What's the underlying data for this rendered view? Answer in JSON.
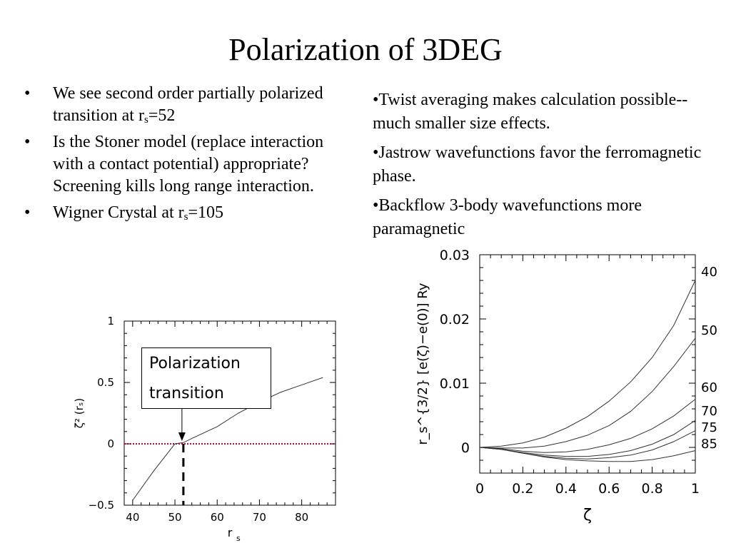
{
  "title": "Polarization of 3DEG",
  "left_bullets": [
    {
      "bullet": "•",
      "parts": [
        "We see second order partially polarized transition at r",
        "s",
        "=52"
      ]
    },
    {
      "bullet": "•",
      "parts": [
        "Is the Stoner model (replace interaction with a contact potential) appropriate? Screening kills long range interaction.",
        "",
        ""
      ]
    },
    {
      "bullet": "•",
      "parts": [
        "Wigner Crystal at r",
        "s",
        "=105"
      ]
    }
  ],
  "right_bullets": [
    "•Twist averaging makes calculation possible--much smaller size effects.",
    "•Jastrow wavefunctions favor the ferromagnetic phase.",
    "•Backflow 3-body wavefunctions more paramagnetic"
  ],
  "chart_data": [
    {
      "type": "line",
      "xlabel": "r",
      "xlabel_sub": "s",
      "ylabel": "ζ² (rₛ)",
      "xlim": [
        38,
        88
      ],
      "ylim": [
        -0.5,
        1
      ],
      "x_ticks": [
        "40",
        "50",
        "60",
        "70",
        "80"
      ],
      "y_ticks": [
        "1",
        "0.5",
        "0",
        "−0.5"
      ],
      "grid": false,
      "series": [
        {
          "x": [
            40,
            45,
            50,
            52,
            55,
            60,
            65,
            70,
            75,
            80,
            85
          ],
          "y": [
            -0.46,
            -0.22,
            0.0,
            0.01,
            0.06,
            0.14,
            0.25,
            0.34,
            0.42,
            0.48,
            0.54
          ]
        }
      ],
      "reference_line": {
        "y": 0,
        "color": "#cc0033",
        "style": "dotted"
      },
      "transition_marker": {
        "x": 52,
        "style": "dashed",
        "color": "#000000"
      },
      "annotation": {
        "line1": "Polarization",
        "line2": "transition"
      }
    },
    {
      "type": "line",
      "xlabel": "ζ",
      "ylabel": "r_s^{3/2} [e(ζ)−e(0)] Ry",
      "xlim": [
        0,
        1
      ],
      "ylim": [
        -0.004,
        0.03
      ],
      "x_ticks": [
        "0",
        "0.2",
        "0.4",
        "0.6",
        "0.8",
        "1"
      ],
      "y_ticks": [
        "0.03",
        "0.02",
        "0.01",
        "0"
      ],
      "grid": false,
      "series": [
        {
          "name": "40",
          "x": [
            0,
            0.1,
            0.2,
            0.3,
            0.4,
            0.5,
            0.6,
            0.7,
            0.8,
            0.9,
            1.0
          ],
          "y": [
            0,
            0.0002,
            0.0007,
            0.0016,
            0.003,
            0.0048,
            0.0072,
            0.0102,
            0.014,
            0.019,
            0.026
          ]
        },
        {
          "name": "50",
          "x": [
            0,
            0.1,
            0.2,
            0.3,
            0.4,
            0.5,
            0.6,
            0.7,
            0.8,
            0.9,
            1.0
          ],
          "y": [
            0,
            -0.0001,
            -0.0001,
            0.0002,
            0.0009,
            0.0019,
            0.0034,
            0.0056,
            0.0087,
            0.0126,
            0.017
          ]
        },
        {
          "name": "60",
          "x": [
            0,
            0.1,
            0.2,
            0.3,
            0.4,
            0.5,
            0.6,
            0.7,
            0.8,
            0.9,
            1.0
          ],
          "y": [
            0,
            -0.0002,
            -0.0006,
            -0.0008,
            -0.0007,
            -0.0003,
            0.0004,
            0.0014,
            0.0029,
            0.0049,
            0.0075
          ]
        },
        {
          "name": "70",
          "x": [
            0,
            0.1,
            0.2,
            0.3,
            0.4,
            0.5,
            0.6,
            0.7,
            0.8,
            0.9,
            1.0
          ],
          "y": [
            0,
            -0.0003,
            -0.0008,
            -0.0012,
            -0.0014,
            -0.0014,
            -0.0011,
            -0.0005,
            0.0005,
            0.002,
            0.0042
          ]
        },
        {
          "name": "75",
          "x": [
            0,
            0.1,
            0.2,
            0.3,
            0.4,
            0.5,
            0.6,
            0.7,
            0.8,
            0.9,
            1.0
          ],
          "y": [
            0,
            -0.0003,
            -0.0009,
            -0.0014,
            -0.0017,
            -0.0018,
            -0.0016,
            -0.0012,
            -0.0004,
            0.0009,
            0.0026
          ]
        },
        {
          "name": "85",
          "x": [
            0,
            0.1,
            0.2,
            0.3,
            0.4,
            0.5,
            0.6,
            0.7,
            0.8,
            0.9,
            1.0
          ],
          "y": [
            0,
            -0.0003,
            -0.0009,
            -0.0015,
            -0.0019,
            -0.0021,
            -0.0022,
            -0.0022,
            -0.0019,
            -0.0013,
            -0.0005
          ]
        }
      ]
    }
  ]
}
